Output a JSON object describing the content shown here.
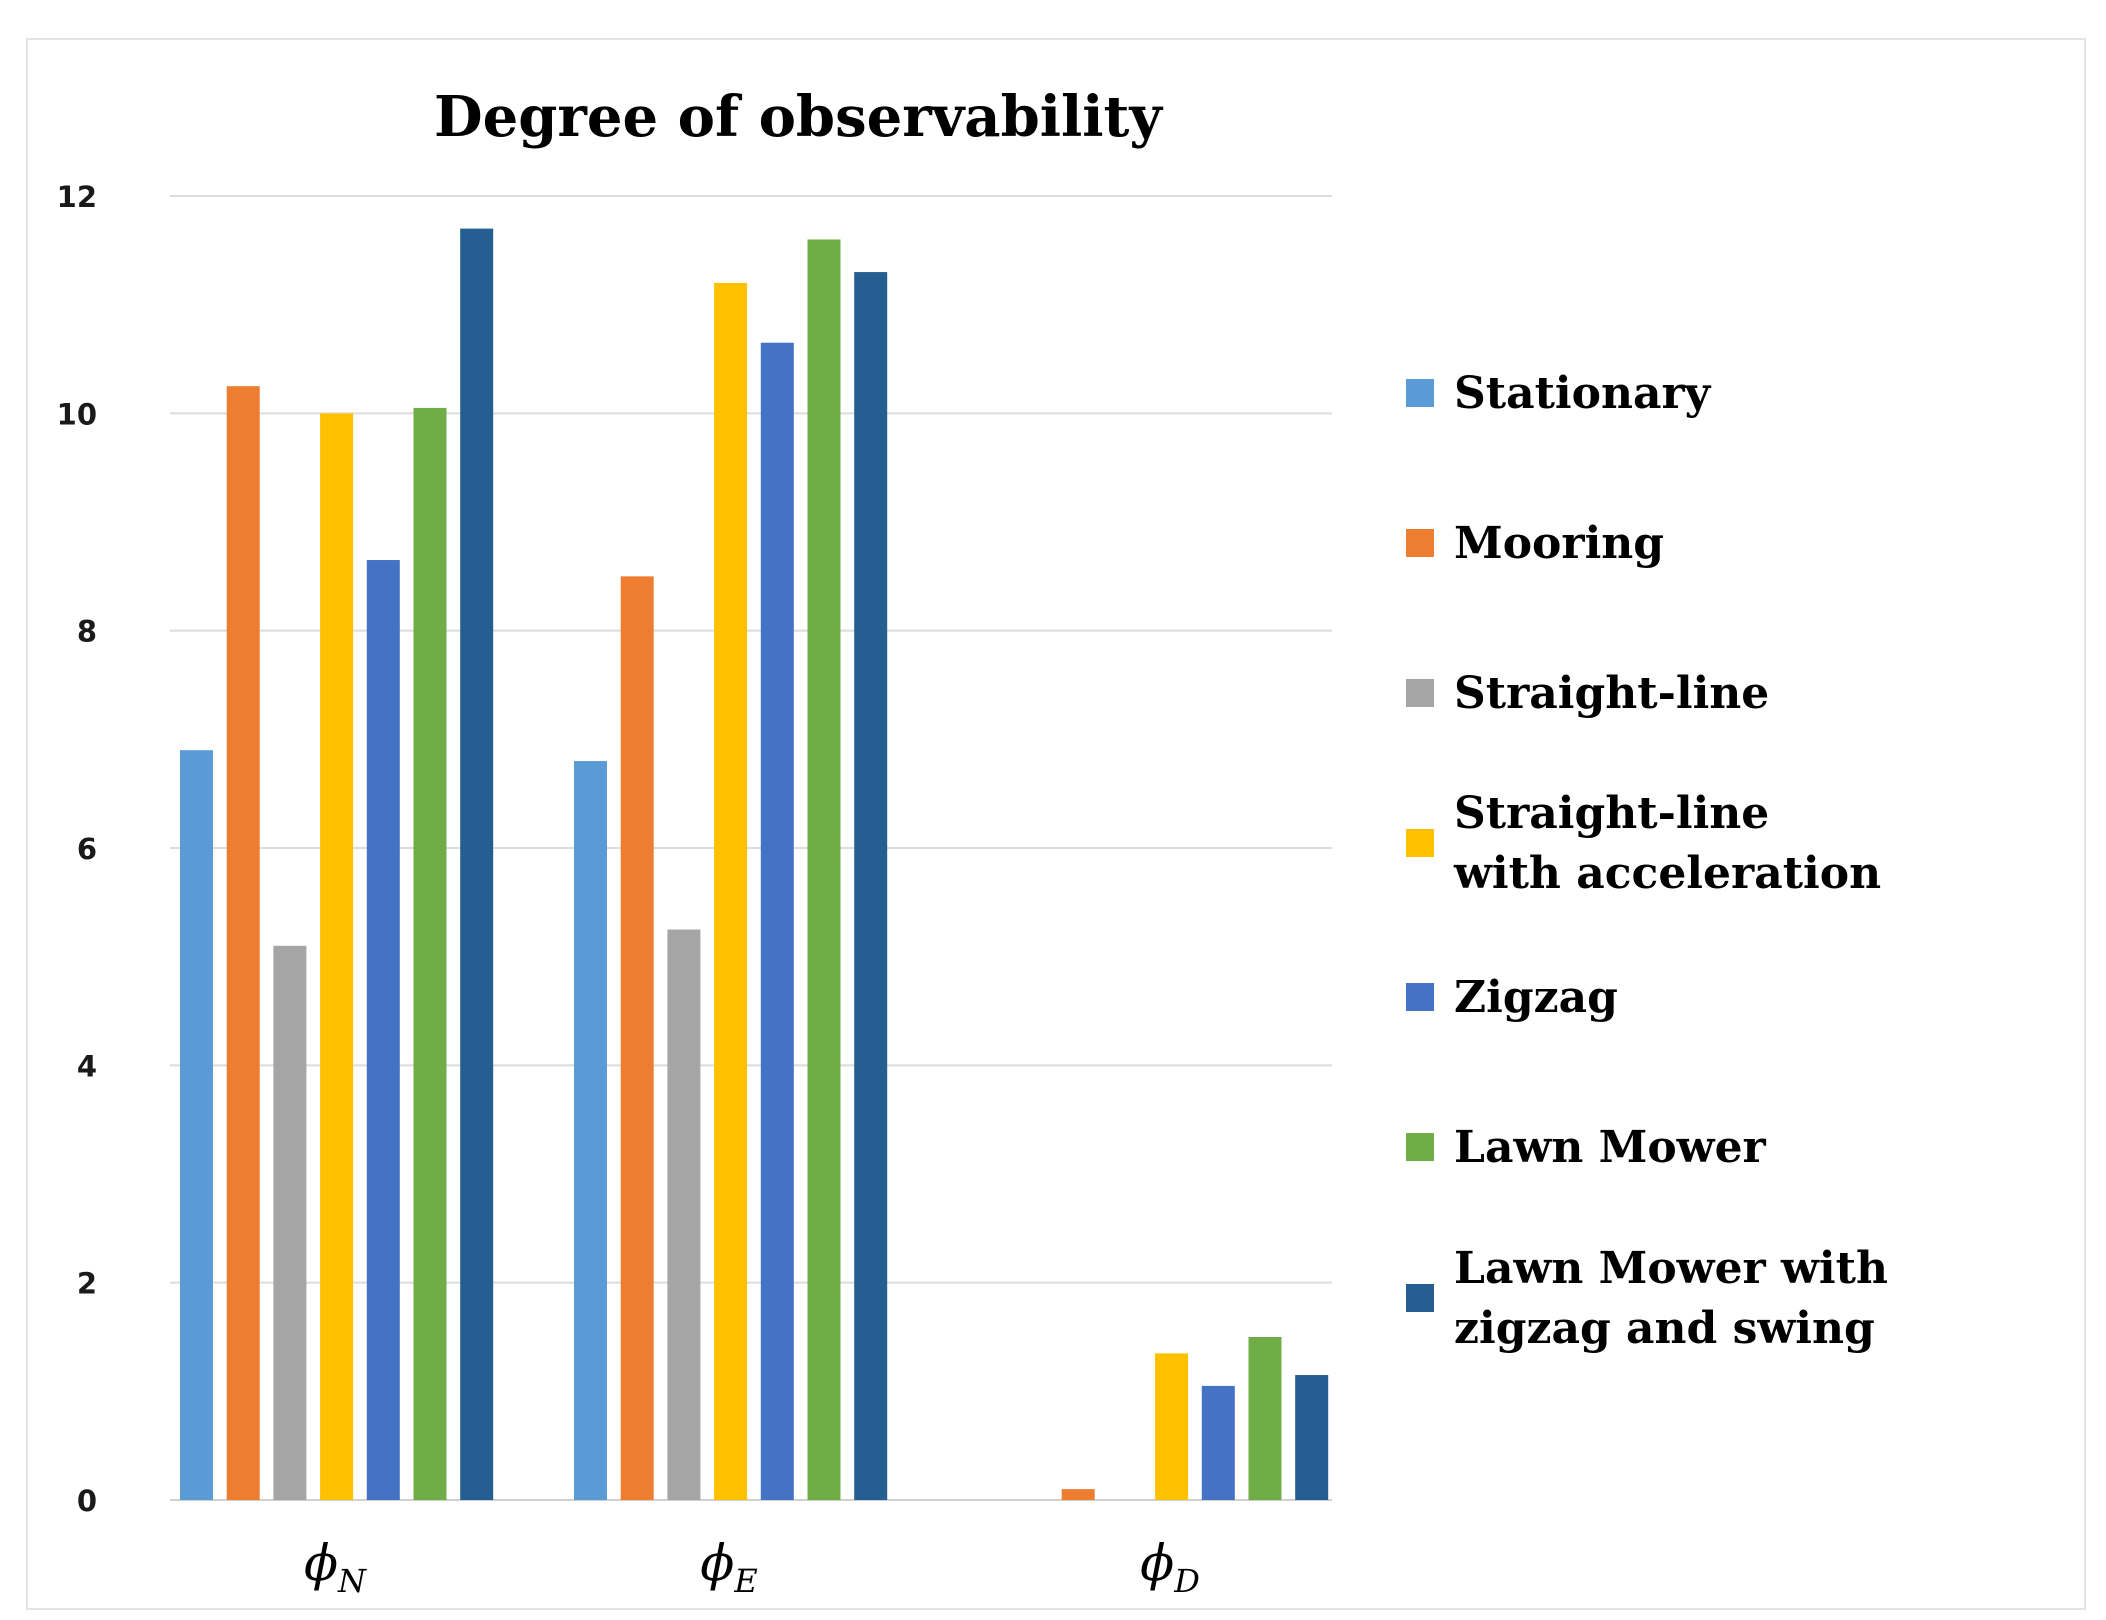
{
  "chart_data": {
    "type": "bar",
    "title": "Degree of observability",
    "xlabel": "",
    "ylabel": "",
    "ylim": [
      0,
      12
    ],
    "yticks": [
      "0",
      "2",
      "4",
      "6",
      "8",
      "10",
      "12"
    ],
    "grid": true,
    "legend_position": "right",
    "categories": [
      {
        "symbol": "ϕ",
        "sub": "N"
      },
      {
        "symbol": "ϕ",
        "sub": "E"
      },
      {
        "symbol": "ϕ",
        "sub": "D"
      }
    ],
    "series": [
      {
        "name": "Stationary",
        "legend_lines": [
          "Stationary"
        ],
        "color": "#5b9bd5",
        "values": [
          6.9,
          6.8,
          0
        ]
      },
      {
        "name": "Mooring",
        "legend_lines": [
          "Mooring"
        ],
        "color": "#ed7d31",
        "values": [
          10.25,
          8.5,
          0.1
        ]
      },
      {
        "name": "Straight-line",
        "legend_lines": [
          "Straight-line"
        ],
        "color": "#a5a5a5",
        "values": [
          5.1,
          5.25,
          0
        ]
      },
      {
        "name": "Straight-line with acceleration",
        "legend_lines": [
          "Straight-line",
          "with acceleration"
        ],
        "color": "#ffc000",
        "values": [
          10.0,
          11.2,
          1.35
        ]
      },
      {
        "name": "Zigzag",
        "legend_lines": [
          " Zigzag"
        ],
        "color": "#4472c4",
        "values": [
          8.65,
          10.65,
          1.05
        ]
      },
      {
        "name": "Lawn Mower",
        "legend_lines": [
          "Lawn Mower"
        ],
        "color": "#70ad47",
        "values": [
          10.05,
          11.6,
          1.5
        ]
      },
      {
        "name": "Lawn Mower with zigzag and swing",
        "legend_lines": [
          "Lawn Mower with",
          "zigzag and swing"
        ],
        "color": "#255e91",
        "values": [
          11.7,
          11.3,
          1.15
        ]
      }
    ]
  }
}
